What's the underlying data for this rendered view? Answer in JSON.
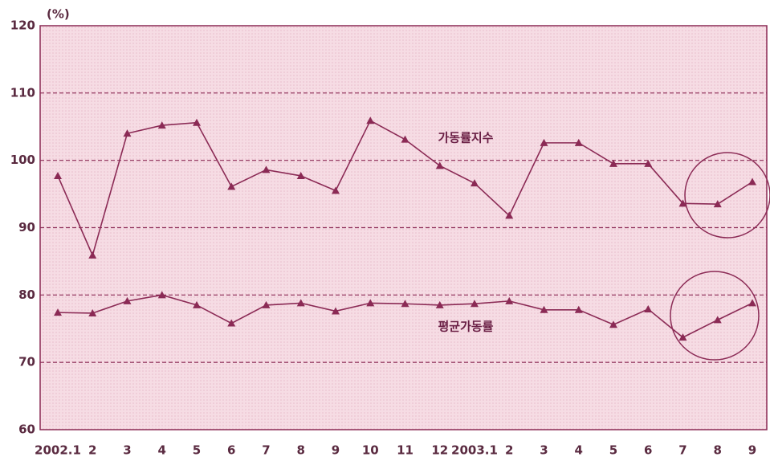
{
  "chart_data": {
    "type": "line",
    "y_label": "(%)",
    "categories": [
      "2002.1",
      "2",
      "3",
      "4",
      "5",
      "6",
      "7",
      "8",
      "9",
      "10",
      "11",
      "12",
      "2003.1",
      "2",
      "3",
      "4",
      "5",
      "6",
      "7",
      "8",
      "9"
    ],
    "series": [
      {
        "name": "가동률지수",
        "color": "#8b2a55",
        "values": [
          97.7,
          85.9,
          104.0,
          105.2,
          105.6,
          96.1,
          98.6,
          97.7,
          95.5,
          105.9,
          103.1,
          99.2,
          96.6,
          91.8,
          102.6,
          102.6,
          99.5,
          99.5,
          93.6,
          93.5,
          96.8
        ]
      },
      {
        "name": "평균가동률",
        "color": "#8b2a55",
        "values": [
          77.4,
          77.3,
          79.1,
          80.0,
          78.5,
          75.8,
          78.5,
          78.8,
          77.6,
          78.8,
          78.7,
          78.5,
          78.7,
          79.1,
          77.8,
          77.8,
          75.6,
          77.9,
          73.7,
          76.3,
          78.8
        ]
      }
    ],
    "ylim": [
      60,
      120
    ],
    "yticks": [
      60,
      70,
      80,
      90,
      100,
      110,
      120
    ],
    "grid": true
  }
}
